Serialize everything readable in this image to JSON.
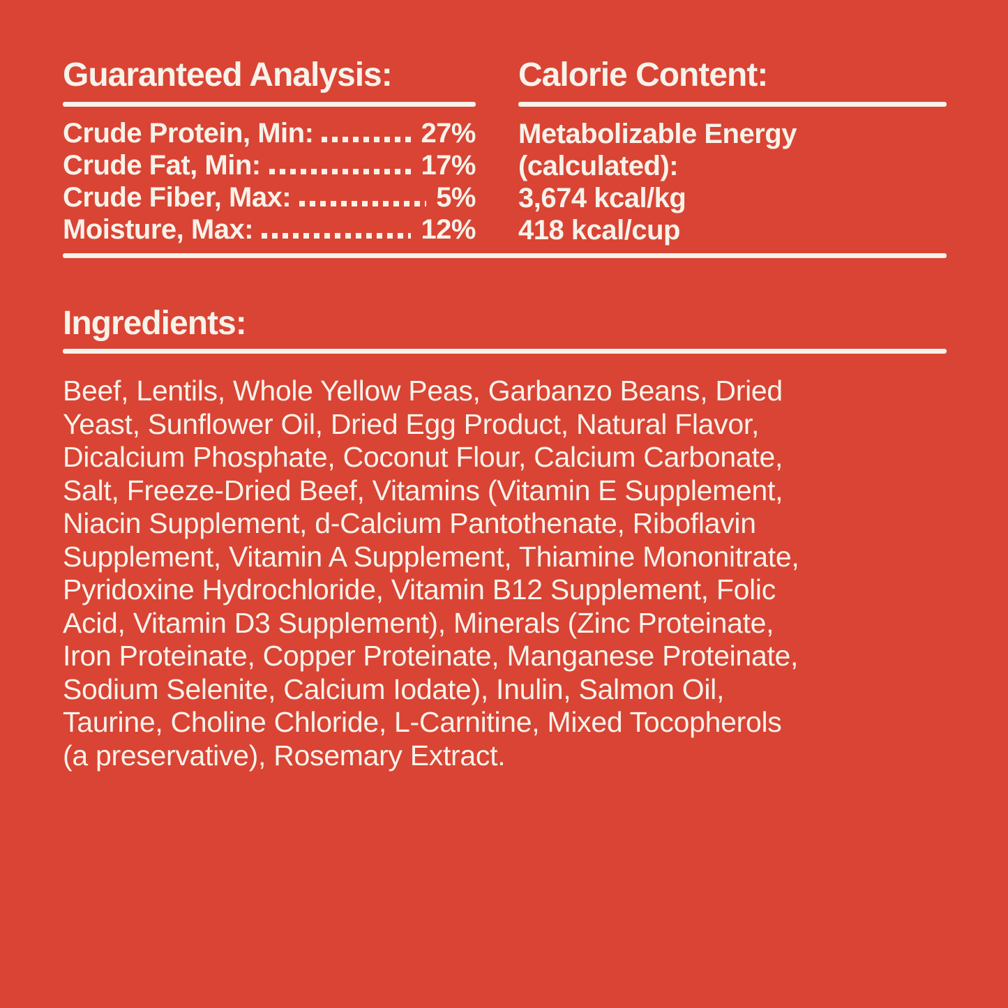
{
  "colors": {
    "background": "#D94434",
    "text": "#F7F2EA"
  },
  "guaranteed_analysis": {
    "heading": "Guaranteed Analysis:",
    "rows": [
      {
        "label": "Crude Protein, Min:",
        "value": "27%"
      },
      {
        "label": "Crude Fat, Min:",
        "value": "17%"
      },
      {
        "label": "Crude Fiber, Max:",
        "value": "5%"
      },
      {
        "label": "Moisture, Max:",
        "value": "12%"
      }
    ]
  },
  "calorie_content": {
    "heading": "Calorie Content:",
    "lines": [
      "Metabolizable Energy",
      "(calculated):",
      "3,674 kcal/kg",
      "418 kcal/cup"
    ]
  },
  "ingredients": {
    "heading": "Ingredients:",
    "text": "Beef, Lentils, Whole Yellow Peas, Garbanzo Beans, Dried Yeast, Sunflower Oil, Dried Egg Product, Natural Flavor, Dicalcium Phosphate, Coconut Flour, Calcium Carbonate, Salt, Freeze-Dried Beef, Vitamins (Vitamin E Supplement, Niacin Supplement, d-Calcium Pantothenate, Riboflavin Supplement, Vitamin A Supplement, Thiamine Mononitrate, Pyridoxine Hydrochloride, Vitamin B12 Supplement, Folic Acid, Vitamin D3 Supplement), Minerals (Zinc Proteinate, Iron Proteinate, Copper Proteinate, Manganese Proteinate, Sodium Selenite, Calcium Iodate), Inulin, Salmon Oil, Taurine, Choline Chloride, L-Carnitine, Mixed Tocopherols (a preservative), Rosemary Extract.",
    "lines": [
      "Beef, Lentils, Whole Yellow Peas, Garbanzo Beans, Dried",
      "Yeast, Sunflower Oil, Dried Egg Product, Natural Flavor,",
      "Dicalcium Phosphate, Coconut Flour, Calcium Carbonate,",
      "Salt, Freeze-Dried Beef, Vitamins (Vitamin E Supplement,",
      "Niacin Supplement, d-Calcium Pantothenate, Riboflavin",
      "Supplement, Vitamin A Supplement, Thiamine Mononitrate,",
      "Pyridoxine Hydrochloride, Vitamin B12 Supplement, Folic",
      "Acid, Vitamin D3 Supplement), Minerals (Zinc Proteinate,",
      "Iron Proteinate, Copper Proteinate, Manganese Proteinate,",
      "Sodium Selenite, Calcium Iodate), Inulin, Salmon Oil,",
      "Taurine, Choline Chloride, L-Carnitine, Mixed Tocopherols",
      "(a preservative), Rosemary Extract."
    ]
  }
}
